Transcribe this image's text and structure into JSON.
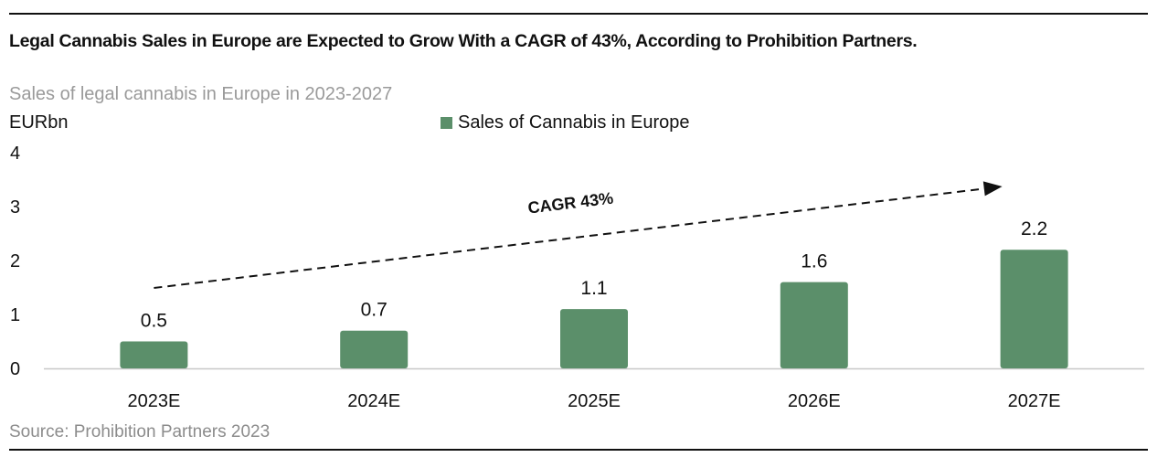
{
  "header": {
    "headline": "Legal Cannabis Sales in Europe are Expected to Grow With a CAGR of 43%, According to Prohibition Partners.",
    "subtitle": "Sales of legal cannabis in Europe in 2023-2027",
    "unit": "EURbn"
  },
  "footer": {
    "source": "Source: Prohibition Partners 2023"
  },
  "chart_data": {
    "type": "bar",
    "title": "Sales of legal cannabis in Europe in 2023-2027",
    "xlabel": "",
    "ylabel": "EURbn",
    "categories": [
      "2023E",
      "2024E",
      "2025E",
      "2026E",
      "2027E"
    ],
    "series": [
      {
        "name": "Sales of Cannabis in Europe",
        "values": [
          0.5,
          0.7,
          1.1,
          1.6,
          2.2
        ],
        "data_labels": [
          "0.5",
          "0.7",
          "1.1",
          "1.6",
          "2.2"
        ],
        "color": "#5b8f6a"
      }
    ],
    "ylim": [
      0,
      4
    ],
    "yticks": [
      "0",
      "1",
      "2",
      "3",
      "4"
    ],
    "grid": false,
    "legend": "top-center",
    "annotation": {
      "text": "CAGR 43%",
      "style": "dashed arrow rising from 2023E to 2027E"
    }
  }
}
